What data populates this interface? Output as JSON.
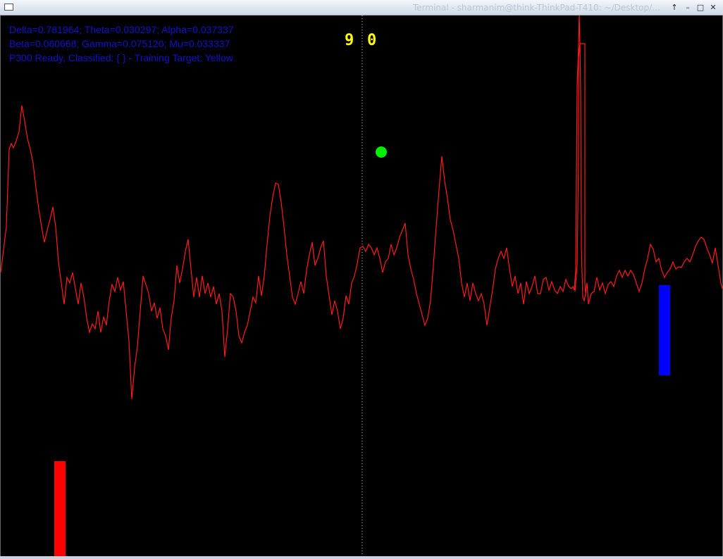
{
  "window": {
    "title": "Terminal - sharmanim@think-ThinkPad-T410: ~/Desktop/…",
    "buttons": {
      "up": "↑",
      "minimize": "–",
      "maximize": "□",
      "close": "✕"
    }
  },
  "hud": {
    "line1": "Delta=0.781964; Theta=0.030297; Alpha=0.037337",
    "line2": "Beta=0.060668; Gamma=0.075120; Mu=0.033337",
    "line3": "P300 Ready, Classified: { } - Training Target: Yellow"
  },
  "score": {
    "left": "9",
    "right": "0"
  },
  "colors": {
    "background": "#000000",
    "signal": "#ff1a1a",
    "left_paddle": "#ff0000",
    "right_paddle": "#0000ff",
    "ball": "#00ee00",
    "score": "#ffff00",
    "hud_text": "#1111cc",
    "center_line": "#bbbbbb"
  },
  "icons": {
    "window_menu": "window-menu-icon"
  }
}
